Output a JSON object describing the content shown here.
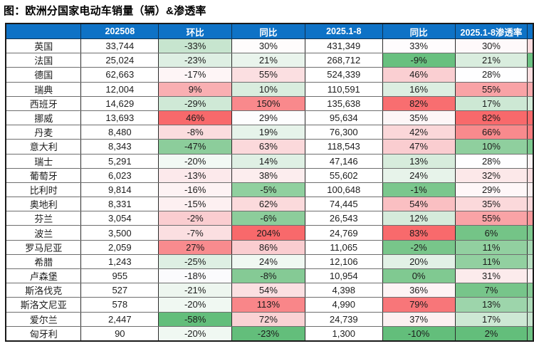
{
  "title": "图：欧洲分国家电动车销量（辆）&渗透率",
  "colors": {
    "header_bg": "#0E72C6",
    "header_text": "#FFFFFF",
    "scale_red": "#F8696B",
    "scale_mid": "#FCFCFF",
    "scale_green": "#63BE7B"
  },
  "chart_data": {
    "type": "table",
    "title": "图：欧洲分国家电动车销量（辆）&渗透率",
    "columns": [
      "",
      "202508",
      "环比",
      "同比",
      "2025.1-8",
      "同比",
      "2025.1-8渗透率"
    ],
    "legend_note": "conditional color scale: green=low, white=mid, red=high per column",
    "rows": [
      {
        "country": "英国",
        "values": [
          "33,744",
          "-33%",
          "30%",
          "431,349",
          "33%",
          "30%"
        ],
        "bg": [
          "#FFFFFF",
          "#C7E5CF",
          "#FEFCFC",
          "#FFFFFF",
          "#FEFCFD",
          "#FEF9FA"
        ],
        "edge_bg": "#FBDCDE"
      },
      {
        "country": "法国",
        "values": [
          "25,024",
          "-23%",
          "21%",
          "268,712",
          "-9%",
          "21%"
        ],
        "bg": [
          "#FFFFFF",
          "#DEEFE3",
          "#E9F4EC",
          "#FFFFFF",
          "#68C07F",
          "#D9EDDE"
        ],
        "edge_bg": "#6DC283"
      },
      {
        "country": "德国",
        "values": [
          "62,663",
          "-17%",
          "55%",
          "524,339",
          "46%",
          "28%"
        ],
        "bg": [
          "#FFFFFF",
          "#FEF5F6",
          "#FBDFE1",
          "#FFFFFF",
          "#FACFD2",
          "#FEFEFF"
        ],
        "edge_bg": "#FBDFE1"
      },
      {
        "country": "瑞典",
        "values": [
          "12,004",
          "9%",
          "10%",
          "110,591",
          "16%",
          "55%"
        ],
        "bg": [
          "#FFFFFF",
          "#F9AFB2",
          "#D9EDDE",
          "#FFFFFF",
          "#DCEEE1",
          "#F9A3A6"
        ],
        "edge_bg": "#F9A9AC"
      },
      {
        "country": "西班牙",
        "values": [
          "14,629",
          "-29%",
          "150%",
          "135,638",
          "82%",
          "17%"
        ],
        "bg": [
          "#FFFFFF",
          "#CFE9D6",
          "#F9898C",
          "#FFFFFF",
          "#F86E70",
          "#CDE8D4"
        ],
        "edge_bg": "#D3EBD9"
      },
      {
        "country": "挪威",
        "values": [
          "13,693",
          "46%",
          "29%",
          "95,634",
          "35%",
          "82%"
        ],
        "bg": [
          "#FFFFFF",
          "#F8696B",
          "#FDFDFE",
          "#FFFFFF",
          "#FDF6F7",
          "#F8696B"
        ],
        "edge_bg": "#F8696B"
      },
      {
        "country": "丹麦",
        "values": [
          "8,480",
          "-8%",
          "19%",
          "76,300",
          "42%",
          "66%"
        ],
        "bg": [
          "#FFFFFF",
          "#FBDCDE",
          "#E6F3EA",
          "#FFFFFF",
          "#FBD7D9",
          "#F88A8D"
        ],
        "edge_bg": "#F87C7F"
      },
      {
        "country": "意大利",
        "values": [
          "8,343",
          "-47%",
          "63%",
          "118,543",
          "47%",
          "10%"
        ],
        "bg": [
          "#FFFFFF",
          "#8CCD9B",
          "#FBD9DB",
          "#FFFFFF",
          "#FACDD0",
          "#8FCF9E"
        ],
        "edge_bg": "#7CC88E"
      },
      {
        "country": "瑞士",
        "values": [
          "5,291",
          "-20%",
          "14%",
          "47,146",
          "13%",
          "28%"
        ],
        "bg": [
          "#FFFFFF",
          "#F2F9F4",
          "#DFF0E4",
          "#FFFFFF",
          "#D7ECDC",
          "#FEFEFF"
        ],
        "edge_bg": "#FDF4F5"
      },
      {
        "country": "葡萄牙",
        "values": [
          "6,023",
          "-13%",
          "38%",
          "55,602",
          "24%",
          "32%"
        ],
        "bg": [
          "#FFFFFF",
          "#FCE9EB",
          "#FCEDEE",
          "#FFFFFF",
          "#E7F3EA",
          "#FCE8E9"
        ],
        "edge_bg": "#FBDEE0"
      },
      {
        "country": "比利时",
        "values": [
          "9,814",
          "-16%",
          "-5%",
          "100,648",
          "-1%",
          "29%"
        ],
        "bg": [
          "#FFFFFF",
          "#FDF2F3",
          "#90D09F",
          "#FFFFFF",
          "#7BC78D",
          "#FEF7F8"
        ],
        "edge_bg": "#FCEFF0"
      },
      {
        "country": "奥地利",
        "values": [
          "8,331",
          "-15%",
          "62%",
          "74,445",
          "54%",
          "35%"
        ],
        "bg": [
          "#FFFFFF",
          "#FDF0F1",
          "#FBDADC",
          "#FFFFFF",
          "#FABFC2",
          "#FBD9DB"
        ],
        "edge_bg": "#FBD9DB"
      },
      {
        "country": "芬兰",
        "values": [
          "3,054",
          "-2%",
          "-6%",
          "26,543",
          "12%",
          "55%"
        ],
        "bg": [
          "#FFFFFF",
          "#FACDD0",
          "#8CCD9B",
          "#FFFFFF",
          "#D5EBDB",
          "#F9A3A6"
        ],
        "edge_bg": "#F9989B"
      },
      {
        "country": "波兰",
        "values": [
          "3,500",
          "-7%",
          "204%",
          "24,769",
          "83%",
          "6%"
        ],
        "bg": [
          "#FFFFFF",
          "#FBDFE1",
          "#F8696B",
          "#FFFFFF",
          "#F86A6C",
          "#74C487"
        ],
        "edge_bg": "#7CC88E"
      },
      {
        "country": "罗马尼亚",
        "values": [
          "2,059",
          "27%",
          "86%",
          "11,065",
          "-2%",
          "11%"
        ],
        "bg": [
          "#FFFFFF",
          "#F88B8E",
          "#FACDD0",
          "#FFFFFF",
          "#78C68A",
          "#92D0A0"
        ],
        "edge_bg": "#A5D8B2"
      },
      {
        "country": "希腊",
        "values": [
          "1,243",
          "-25%",
          "24%",
          "12,106",
          "20%",
          "11%"
        ],
        "bg": [
          "#FFFFFF",
          "#DEEFE3",
          "#F0F8F2",
          "#FFFFFF",
          "#E2F1E6",
          "#92D0A0"
        ],
        "edge_bg": "#B7DFC1"
      },
      {
        "country": "卢森堡",
        "values": [
          "955",
          "-18%",
          "-8%",
          "10,954",
          "0%",
          "31%"
        ],
        "bg": [
          "#FFFFFF",
          "#FBFBFD",
          "#85CA95",
          "#FFFFFF",
          "#80C991",
          "#FCEBEC"
        ],
        "edge_bg": "#FDF2F3"
      },
      {
        "country": "斯洛伐克",
        "values": [
          "527",
          "-21%",
          "54%",
          "4,398",
          "36%",
          "7%"
        ],
        "bg": [
          "#FFFFFF",
          "#EDF6EF",
          "#FBE0E2",
          "#FFFFFF",
          "#FDF4F5",
          "#77C58A"
        ],
        "edge_bg": "#85CA95"
      },
      {
        "country": "斯洛文尼亚",
        "values": [
          "578",
          "-20%",
          "113%",
          "4,990",
          "79%",
          "13%"
        ],
        "bg": [
          "#FFFFFF",
          "#F0F8F2",
          "#F98689",
          "#FFFFFF",
          "#F87679",
          "#9DD5AB"
        ],
        "edge_bg": "#ACDBB8"
      },
      {
        "country": "爱尔兰",
        "values": [
          "2,447",
          "-58%",
          "72%",
          "24,739",
          "37%",
          "17%"
        ],
        "bg": [
          "#FFFFFF",
          "#63BE7B",
          "#FAD2D4",
          "#FFFFFF",
          "#FCF0F1",
          "#CDE8D4"
        ],
        "edge_bg": "#C6E5CE"
      },
      {
        "country": "匈牙利",
        "values": [
          "90",
          "-20%",
          "-23%",
          "1,300",
          "-10%",
          "2%"
        ],
        "bg": [
          "#FFFFFF",
          "#F0F8F2",
          "#63BE7B",
          "#FFFFFF",
          "#63BE7B",
          "#63BE7B"
        ],
        "edge_bg": "#6DC283"
      }
    ]
  }
}
